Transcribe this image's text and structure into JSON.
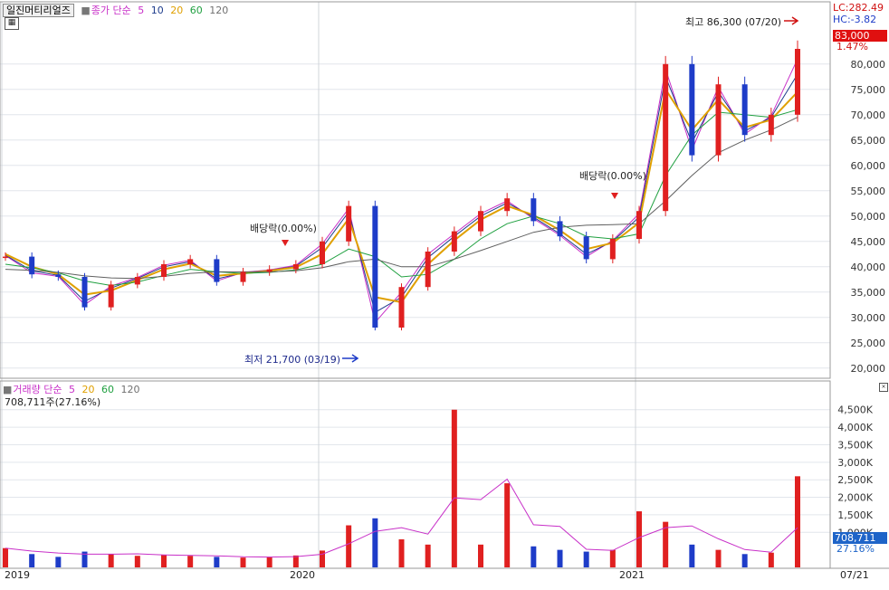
{
  "stock": {
    "name": "일진머티리얼즈"
  },
  "price_legend": {
    "label": "종가 단순",
    "periods": [
      "5",
      "10",
      "20",
      "60",
      "120"
    ]
  },
  "volume_legend": {
    "label": "거래량 단순",
    "periods": [
      "5",
      "20",
      "60",
      "120"
    ],
    "current": "708,711주(27.16%)"
  },
  "readouts": {
    "lc": "LC:282.49",
    "hc": "HC:-3.82",
    "price": "83,000",
    "change_pct": "1.47%",
    "volume": "708,711",
    "volume_pct": "27.16%"
  },
  "annotations": {
    "high": "최고 86,300 (07/20)",
    "low": "최저 21,700 (03/19)",
    "dividend_1": "배당락(0.00%)",
    "dividend_2": "배당락(0.00%)"
  },
  "x_axis": {
    "year_labels": [
      "2019",
      "2020",
      "2021"
    ],
    "end_label": "07/21"
  },
  "colors": {
    "up": "#e02020",
    "down": "#1e3cc8",
    "ma5": "#c830c8",
    "ma10": "#1e3c8c",
    "ma20": "#e0a000",
    "ma60": "#20a040",
    "ma120": "#606060"
  },
  "chart_data": [
    {
      "type": "candlestick",
      "title": "일진머티리얼즈",
      "ylim": [
        18000,
        88000
      ],
      "y_ticks": [
        "20,000",
        "25,000",
        "30,000",
        "35,000",
        "40,000",
        "45,000",
        "50,000",
        "55,000",
        "60,000",
        "65,000",
        "70,000",
        "75,000",
        "80,000"
      ],
      "x": [
        "2019-01",
        "2019-02",
        "2019-03",
        "2019-04",
        "2019-05",
        "2019-06",
        "2019-07",
        "2019-08",
        "2019-09",
        "2019-10",
        "2019-11",
        "2019-12",
        "2020-01",
        "2020-02",
        "2020-03",
        "2020-04",
        "2020-05",
        "2020-06",
        "2020-07",
        "2020-08",
        "2020-09",
        "2020-10",
        "2020-11",
        "2020-12",
        "2021-01",
        "2021-02",
        "2021-03",
        "2021-04",
        "2021-05",
        "2021-06",
        "2021-07"
      ],
      "series": [
        {
          "name": "종가",
          "values": [
            42000,
            38500,
            38000,
            32000,
            36500,
            38000,
            40500,
            41500,
            37000,
            39000,
            39500,
            40500,
            45000,
            52000,
            28000,
            36000,
            43000,
            47000,
            51000,
            53500,
            49000,
            46000,
            41500,
            45500,
            51000,
            80000,
            62000,
            76000,
            66000,
            70000,
            83000
          ]
        },
        {
          "name": "5",
          "values": [
            42200,
            38800,
            38100,
            32500,
            36200,
            37900,
            40300,
            41300,
            37200,
            38900,
            39400,
            40300,
            44500,
            51500,
            29000,
            35000,
            42500,
            46500,
            50500,
            53000,
            49500,
            46200,
            42000,
            45200,
            50500,
            79000,
            63000,
            75500,
            66200,
            69800,
            81000
          ]
        },
        {
          "name": "10",
          "values": [
            42300,
            39200,
            38300,
            33200,
            35800,
            37700,
            40000,
            41000,
            37600,
            38800,
            39300,
            40100,
            43800,
            50800,
            31000,
            34000,
            41800,
            46000,
            50000,
            52600,
            49800,
            46500,
            42500,
            45000,
            49800,
            77500,
            64500,
            74500,
            66800,
            69500,
            78000
          ]
        },
        {
          "name": "20",
          "values": [
            42500,
            40000,
            38500,
            34500,
            35300,
            37400,
            39500,
            40600,
            38200,
            38700,
            39200,
            39900,
            42500,
            49500,
            34000,
            33000,
            40500,
            45200,
            49300,
            52000,
            50200,
            47200,
            43500,
            44700,
            48700,
            75000,
            67000,
            73000,
            67500,
            69000,
            74500
          ]
        },
        {
          "name": "60",
          "values": [
            40500,
            39800,
            38800,
            37200,
            36300,
            37000,
            38300,
            39500,
            39000,
            38700,
            38900,
            39400,
            40500,
            43500,
            42000,
            38000,
            38500,
            41500,
            45500,
            48500,
            50000,
            48500,
            46000,
            45500,
            46500,
            58000,
            66000,
            70500,
            70000,
            69500,
            71000
          ]
        },
        {
          "name": "120",
          "values": [
            39500,
            39300,
            38900,
            38200,
            37800,
            37700,
            38100,
            38700,
            39000,
            39000,
            39000,
            39200,
            39800,
            41000,
            41500,
            40000,
            40000,
            41500,
            43200,
            45000,
            46800,
            47800,
            48200,
            48300,
            48500,
            53000,
            58000,
            62500,
            65000,
            67000,
            69500
          ]
        }
      ]
    },
    {
      "type": "bar",
      "title": "거래량",
      "ylim": [
        0,
        4700
      ],
      "y_ticks": [
        "1,000K",
        "1,500K",
        "2,000K",
        "2,500K",
        "3,000K",
        "3,500K",
        "4,000K",
        "4,500K"
      ],
      "x": [
        "2019-01",
        "2019-02",
        "2019-03",
        "2019-04",
        "2019-05",
        "2019-06",
        "2019-07",
        "2019-08",
        "2019-09",
        "2019-10",
        "2019-11",
        "2019-12",
        "2020-01",
        "2020-02",
        "2020-03",
        "2020-04",
        "2020-05",
        "2020-06",
        "2020-07",
        "2020-08",
        "2020-09",
        "2020-10",
        "2020-11",
        "2020-12",
        "2021-01",
        "2021-02",
        "2021-03",
        "2021-04",
        "2021-05",
        "2021-06",
        "2021-07"
      ],
      "series": [
        {
          "name": "거래량",
          "values": [
            550,
            380,
            300,
            450,
            380,
            330,
            360,
            330,
            300,
            280,
            300,
            340,
            480,
            1200,
            1400,
            800,
            650,
            4500,
            650,
            2400,
            600,
            500,
            450,
            500,
            1600,
            1300,
            650,
            500,
            380,
            420,
            2600
          ]
        }
      ]
    }
  ]
}
